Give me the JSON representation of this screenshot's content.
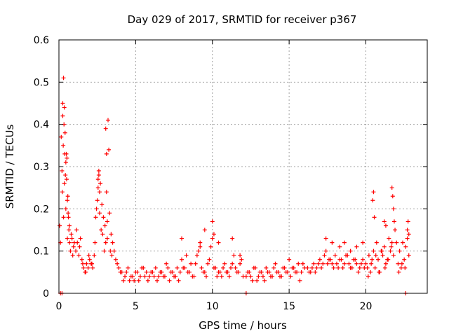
{
  "chart_data": {
    "type": "scatter",
    "title": "Day 029 of 2017, SRMTID for receiver p367",
    "xlabel": "GPS time / hours",
    "ylabel": "SRMTID / TECUs",
    "xlim": [
      0,
      24
    ],
    "ylim": [
      0,
      0.6
    ],
    "x_ticks": [
      0,
      5,
      10,
      15,
      20
    ],
    "x_tick_labels": [
      "0",
      "5",
      "10",
      "15",
      "20"
    ],
    "y_ticks": [
      0,
      0.1,
      0.2,
      0.3,
      0.4,
      0.5,
      0.6
    ],
    "y_tick_labels": [
      "0",
      "0.1",
      "0.2",
      "0.3",
      "0.4",
      "0.5",
      "0.6"
    ],
    "grid": true,
    "marker": "plus",
    "series": [
      {
        "name": "SRMTID",
        "color": "#ff0000",
        "x": [
          0.05,
          0.1,
          0.15,
          0.2,
          0.25,
          0.3,
          0.35,
          0.4,
          0.45,
          0.5,
          0.55,
          0.6,
          0.65,
          0.7,
          0.75,
          0.8,
          0.85,
          0.9,
          0.95,
          1.0,
          0.22,
          0.28,
          0.33,
          0.38,
          0.42,
          0.48,
          0.52,
          0.58,
          0.62,
          0.68,
          0.3,
          0.35,
          0.45,
          0.55,
          0.25,
          1.1,
          1.2,
          1.3,
          1.4,
          1.5,
          1.6,
          1.7,
          1.8,
          1.9,
          2.0,
          2.1,
          2.2,
          2.3,
          2.4,
          2.5,
          2.6,
          2.7,
          2.8,
          2.9,
          3.0,
          3.1,
          3.2,
          3.3,
          3.4,
          3.5,
          3.6,
          3.7,
          3.8,
          3.9,
          4.0,
          1.15,
          1.35,
          1.55,
          1.75,
          1.95,
          2.15,
          2.35,
          2.45,
          2.55,
          2.65,
          2.75,
          2.85,
          2.95,
          3.05,
          3.15,
          3.25,
          3.35,
          3.45,
          2.55,
          2.6,
          2.65,
          3.05,
          3.1,
          3.15,
          4.1,
          4.3,
          4.5,
          4.7,
          4.9,
          5.1,
          5.3,
          5.5,
          5.7,
          5.9,
          6.1,
          6.3,
          6.5,
          6.7,
          6.9,
          7.1,
          7.3,
          7.5,
          7.7,
          7.9,
          4.2,
          4.4,
          4.6,
          4.8,
          5.0,
          5.2,
          5.4,
          5.6,
          5.8,
          6.0,
          6.2,
          6.4,
          6.6,
          6.8,
          7.0,
          7.2,
          7.4,
          7.6,
          7.8,
          8.0,
          8.2,
          8.4,
          8.6,
          8.8,
          9.0,
          9.2,
          9.4,
          9.6,
          9.8,
          10.0,
          10.2,
          10.4,
          10.6,
          10.8,
          11.0,
          11.2,
          11.4,
          11.6,
          11.8,
          12.0,
          8.1,
          8.3,
          8.5,
          8.7,
          8.9,
          9.1,
          9.3,
          9.5,
          9.7,
          9.9,
          10.1,
          10.3,
          10.5,
          10.7,
          10.9,
          11.1,
          11.3,
          11.5,
          11.7,
          11.9,
          8.0,
          9.2,
          9.5,
          10.0,
          10.1,
          10.4,
          11.3,
          11.8,
          12.2,
          12.4,
          12.6,
          12.8,
          13.0,
          13.2,
          13.4,
          13.6,
          13.8,
          14.0,
          14.2,
          14.4,
          14.6,
          14.8,
          15.0,
          15.2,
          15.4,
          15.6,
          15.8,
          16.0,
          12.3,
          12.5,
          12.7,
          12.9,
          13.1,
          13.3,
          13.5,
          13.7,
          13.9,
          14.1,
          14.3,
          14.5,
          14.7,
          14.9,
          15.1,
          15.3,
          15.5,
          15.7,
          15.9,
          16.2,
          16.4,
          16.6,
          16.8,
          17.0,
          17.2,
          17.4,
          17.6,
          17.8,
          18.0,
          18.2,
          18.4,
          18.6,
          18.8,
          19.0,
          19.2,
          19.4,
          19.6,
          19.8,
          20.0,
          16.3,
          16.5,
          16.7,
          16.9,
          17.1,
          17.3,
          17.5,
          17.7,
          17.9,
          18.1,
          18.3,
          18.5,
          18.7,
          18.9,
          19.1,
          19.3,
          19.5,
          19.7,
          19.9,
          17.4,
          17.8,
          18.3,
          18.6,
          19.0,
          19.4,
          19.8,
          20.1,
          20.2,
          20.3,
          20.4,
          20.5,
          20.6,
          20.7,
          20.8,
          20.9,
          21.0,
          21.1,
          21.2,
          21.3,
          21.4,
          21.5,
          21.6,
          21.7,
          21.8,
          21.9,
          22.0,
          22.1,
          22.2,
          22.3,
          22.4,
          22.5,
          22.6,
          22.7,
          22.8,
          20.45,
          20.5,
          20.55,
          21.2,
          21.3,
          21.7,
          21.75,
          21.8,
          21.85,
          22.7,
          22.75,
          22.8,
          20.15,
          20.35,
          20.65,
          20.85,
          21.05,
          21.25,
          21.45,
          21.65,
          22.15,
          22.35,
          22.55,
          0.1,
          0.2,
          12.2,
          22.6
        ],
        "y": [
          0.16,
          0.12,
          0.37,
          0.29,
          0.45,
          0.51,
          0.44,
          0.38,
          0.31,
          0.27,
          0.22,
          0.19,
          0.15,
          0.12,
          0.1,
          0.14,
          0.13,
          0.09,
          0.11,
          0.12,
          0.24,
          0.35,
          0.4,
          0.33,
          0.28,
          0.33,
          0.32,
          0.23,
          0.18,
          0.16,
          0.18,
          0.26,
          0.2,
          0.13,
          0.42,
          0.1,
          0.12,
          0.09,
          0.13,
          0.08,
          0.06,
          0.05,
          0.07,
          0.06,
          0.08,
          0.07,
          0.06,
          0.09,
          0.18,
          0.22,
          0.29,
          0.26,
          0.21,
          0.18,
          0.16,
          0.24,
          0.41,
          0.19,
          0.14,
          0.12,
          0.1,
          0.08,
          0.07,
          0.06,
          0.05,
          0.15,
          0.11,
          0.07,
          0.05,
          0.09,
          0.07,
          0.12,
          0.2,
          0.25,
          0.19,
          0.15,
          0.14,
          0.1,
          0.12,
          0.13,
          0.34,
          0.1,
          0.09,
          0.27,
          0.28,
          0.24,
          0.39,
          0.33,
          0.17,
          0.05,
          0.04,
          0.06,
          0.04,
          0.03,
          0.05,
          0.04,
          0.06,
          0.05,
          0.04,
          0.05,
          0.06,
          0.04,
          0.05,
          0.04,
          0.06,
          0.05,
          0.04,
          0.06,
          0.05,
          0.03,
          0.05,
          0.03,
          0.04,
          0.05,
          0.03,
          0.06,
          0.04,
          0.03,
          0.05,
          0.04,
          0.03,
          0.05,
          0.04,
          0.07,
          0.03,
          0.05,
          0.04,
          0.03,
          0.08,
          0.06,
          0.05,
          0.07,
          0.04,
          0.09,
          0.12,
          0.05,
          0.04,
          0.08,
          0.13,
          0.06,
          0.05,
          0.04,
          0.07,
          0.05,
          0.06,
          0.09,
          0.05,
          0.07,
          0.04,
          0.06,
          0.09,
          0.05,
          0.04,
          0.07,
          0.1,
          0.06,
          0.05,
          0.07,
          0.11,
          0.06,
          0.04,
          0.05,
          0.06,
          0.05,
          0.04,
          0.07,
          0.06,
          0.05,
          0.08,
          0.13,
          0.11,
          0.15,
          0.17,
          0.14,
          0.12,
          0.13,
          0.09,
          0.04,
          0.05,
          0.03,
          0.06,
          0.04,
          0.05,
          0.03,
          0.05,
          0.04,
          0.06,
          0.05,
          0.04,
          0.06,
          0.05,
          0.08,
          0.06,
          0.05,
          0.07,
          0.05,
          0.06,
          0.05,
          0.04,
          0.06,
          0.03,
          0.05,
          0.04,
          0.06,
          0.05,
          0.04,
          0.07,
          0.05,
          0.04,
          0.06,
          0.05,
          0.04,
          0.06,
          0.05,
          0.03,
          0.07,
          0.06,
          0.05,
          0.07,
          0.06,
          0.08,
          0.07,
          0.1,
          0.08,
          0.07,
          0.09,
          0.06,
          0.08,
          0.07,
          0.09,
          0.06,
          0.08,
          0.07,
          0.06,
          0.08,
          0.07,
          0.05,
          0.06,
          0.05,
          0.07,
          0.06,
          0.09,
          0.07,
          0.08,
          0.06,
          0.07,
          0.08,
          0.06,
          0.09,
          0.07,
          0.06,
          0.08,
          0.05,
          0.07,
          0.06,
          0.13,
          0.12,
          0.11,
          0.12,
          0.1,
          0.11,
          0.12,
          0.06,
          0.09,
          0.05,
          0.08,
          0.1,
          0.06,
          0.12,
          0.08,
          0.05,
          0.1,
          0.09,
          0.11,
          0.07,
          0.08,
          0.13,
          0.1,
          0.12,
          0.09,
          0.15,
          0.12,
          0.07,
          0.1,
          0.06,
          0.12,
          0.08,
          0.11,
          0.13,
          0.09,
          0.22,
          0.24,
          0.18,
          0.17,
          0.16,
          0.25,
          0.23,
          0.2,
          0.17,
          0.15,
          0.17,
          0.14,
          0.04,
          0.07,
          0.09,
          0.05,
          0.1,
          0.06,
          0.08,
          0.11,
          0.05,
          0.07,
          0.06,
          0.0,
          0.0,
          0.0,
          0.0
        ]
      }
    ]
  }
}
